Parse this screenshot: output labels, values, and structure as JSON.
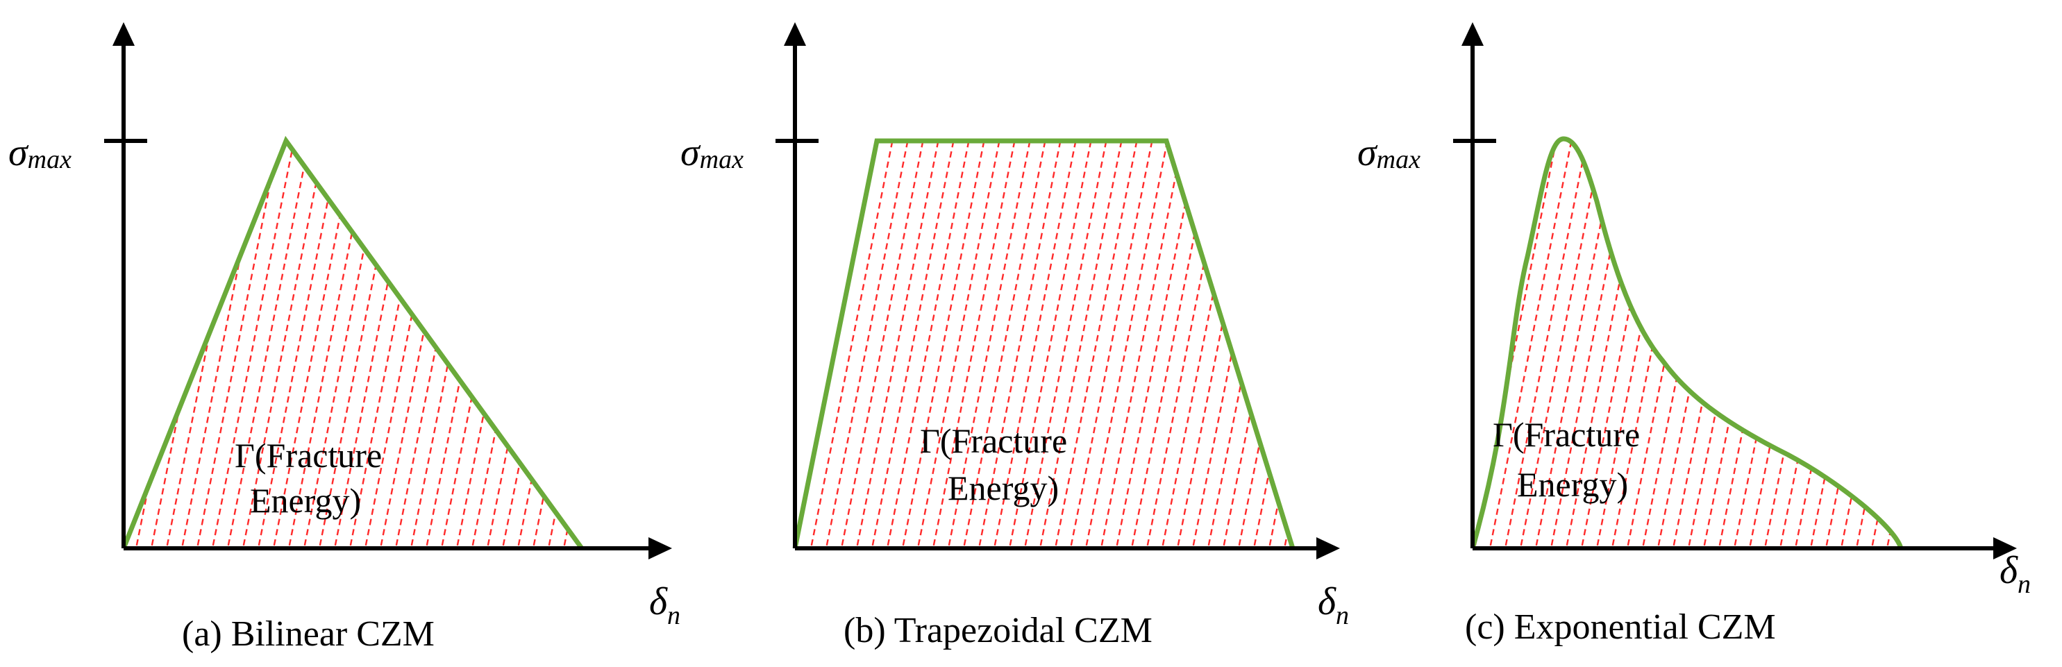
{
  "figure": {
    "colors": {
      "curve": "#6aaa3a",
      "hatch": "#ff2a2a",
      "axis": "#000000"
    },
    "panels": [
      {
        "id": "bilinear",
        "caption": "(a)  Bilinear CZM",
        "y_axis_symbol": "σ",
        "y_axis_subscript": "max",
        "x_axis_symbol": "δ",
        "x_axis_subscript": "n",
        "area_label_line1": "Γ(Fracture",
        "area_label_line2": "Energy)"
      },
      {
        "id": "trapezoidal",
        "caption": "(b)  Trapezoidal CZM",
        "y_axis_symbol": "σ",
        "y_axis_subscript": "max",
        "x_axis_symbol": "δ",
        "x_axis_subscript": "n",
        "area_label_line1": "Γ(Fracture",
        "area_label_line2": "Energy)"
      },
      {
        "id": "exponential",
        "caption": "(c)  Exponential CZM",
        "y_axis_symbol": "σ",
        "y_axis_subscript": "max",
        "x_axis_symbol": "δ",
        "x_axis_subscript": "n",
        "area_label_line1": "Γ(Fracture",
        "area_label_line2": "Energy)"
      }
    ]
  }
}
